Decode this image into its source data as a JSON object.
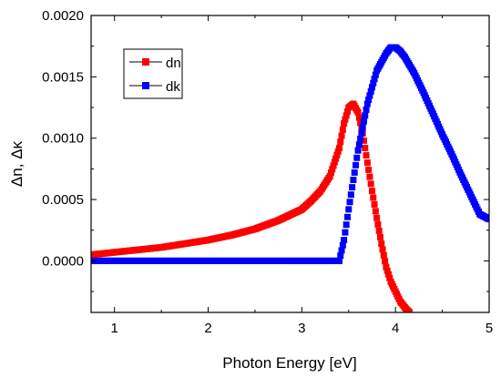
{
  "chart_data": {
    "type": "scatter",
    "title": "",
    "xlabel": "Photon Energy [eV]",
    "ylabel": "Δn, Δκ",
    "xlim": [
      0.75,
      5.0
    ],
    "ylim": [
      -0.00042,
      0.002
    ],
    "x_ticks": [
      1,
      2,
      3,
      4,
      5
    ],
    "x_tick_labels": [
      "1",
      "2",
      "3",
      "4",
      "5"
    ],
    "y_ticks": [
      0.0,
      0.0005,
      0.001,
      0.0015,
      0.002
    ],
    "y_tick_labels": [
      "0.0000",
      "0.0005",
      "0.0010",
      "0.0015",
      "0.0020"
    ],
    "grid": false,
    "legend_position": "top-left",
    "series": [
      {
        "name": "dn",
        "color": "#ff0000",
        "marker": "square",
        "x": [
          0.75,
          1.0,
          1.25,
          1.5,
          1.75,
          2.0,
          2.25,
          2.5,
          2.75,
          3.0,
          3.1,
          3.2,
          3.3,
          3.4,
          3.45,
          3.5,
          3.55,
          3.6,
          3.65,
          3.7,
          3.75,
          3.8,
          3.85,
          3.9,
          3.95,
          4.0,
          4.05,
          4.1,
          4.15
        ],
        "y": [
          5e-05,
          7e-05,
          9e-05,
          0.00011,
          0.00014,
          0.00017,
          0.00021,
          0.00026,
          0.00033,
          0.00042,
          0.00049,
          0.00057,
          0.00069,
          0.00092,
          0.00112,
          0.00125,
          0.00128,
          0.00121,
          0.00104,
          0.0008,
          0.00057,
          0.00035,
          0.00014,
          -5e-05,
          -0.00017,
          -0.00025,
          -0.00033,
          -0.00038,
          -0.00042
        ]
      },
      {
        "name": "dk",
        "color": "#0000ff",
        "marker": "square",
        "x": [
          0.75,
          1.0,
          1.5,
          2.0,
          2.5,
          3.0,
          3.4,
          3.45,
          3.5,
          3.6,
          3.7,
          3.8,
          3.9,
          3.95,
          4.0,
          4.05,
          4.1,
          4.2,
          4.3,
          4.4,
          4.5,
          4.6,
          4.7,
          4.8,
          4.9,
          5.0
        ],
        "y": [
          0.0,
          0.0,
          0.0,
          0.0,
          0.0,
          0.0,
          0.0,
          0.00017,
          0.00042,
          0.0009,
          0.00128,
          0.00155,
          0.00169,
          0.00174,
          0.00174,
          0.00171,
          0.00166,
          0.00153,
          0.00137,
          0.0012,
          0.00103,
          0.00087,
          0.0007,
          0.00054,
          0.00038,
          0.00034
        ]
      }
    ]
  }
}
